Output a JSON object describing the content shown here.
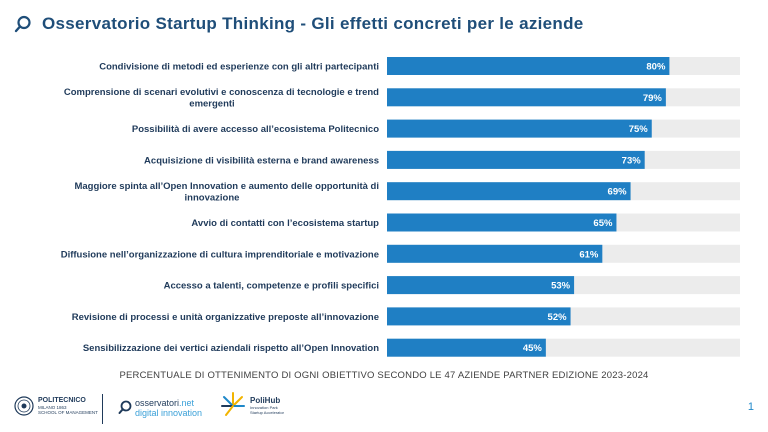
{
  "header": {
    "title": "Osservatorio Startup Thinking - Gli effetti concreti per le aziende",
    "title_color": "#1f4e79"
  },
  "chart_data": {
    "type": "bar",
    "orientation": "horizontal",
    "categories": [
      [
        "Condivisione di metodi ed esperienze con gli altri partecipanti"
      ],
      [
        "Comprensione di scenari evolutivi e conoscenza di tecnologie e trend",
        "emergenti"
      ],
      [
        "Possibilità di avere accesso all’ecosistema Politecnico"
      ],
      [
        "Acquisizione di visibilità esterna e brand awareness"
      ],
      [
        "Maggiore spinta all’Open Innovation e aumento delle opportunità di",
        "innovazione"
      ],
      [
        "Avvio di contatti con l’ecosistema startup"
      ],
      [
        "Diffusione nell’organizzazione di cultura imprenditoriale e motivazione"
      ],
      [
        "Accesso a talenti, competenze e profili specifici"
      ],
      [
        "Revisione di processi e unità organizzative preposte all’innovazione"
      ],
      [
        "Sensibilizzazione dei vertici aziendali rispetto all’Open Innovation"
      ]
    ],
    "values": [
      80,
      79,
      75,
      73,
      69,
      65,
      61,
      53,
      52,
      45
    ],
    "value_labels": [
      "80%",
      "79%",
      "75%",
      "73%",
      "69%",
      "65%",
      "61%",
      "53%",
      "52%",
      "45%"
    ],
    "xlim": [
      0,
      100
    ],
    "grid": false,
    "bar_color": "#1f7fc4",
    "track_color": "#ececec"
  },
  "footnote": "PERCENTUALE DI OTTENIMENTO DI OGNI OBIETTIVO SECONDO LE 47 AZIENDE PARTNER EDIZIONE 2023-2024",
  "footer": {
    "polimi_name": "POLITECNICO",
    "polimi_sub1": "MILANO 1863",
    "polimi_sub2": "SCHOOL OF MANAGEMENT",
    "oss_name": "osservatori",
    "oss_net": ".net",
    "oss_sub": "digital innovation",
    "polihub_name": "PoliHub",
    "polihub_sub1": "Innovation Park",
    "polihub_sub2": "Startup Accelerator",
    "page_number": "1"
  }
}
